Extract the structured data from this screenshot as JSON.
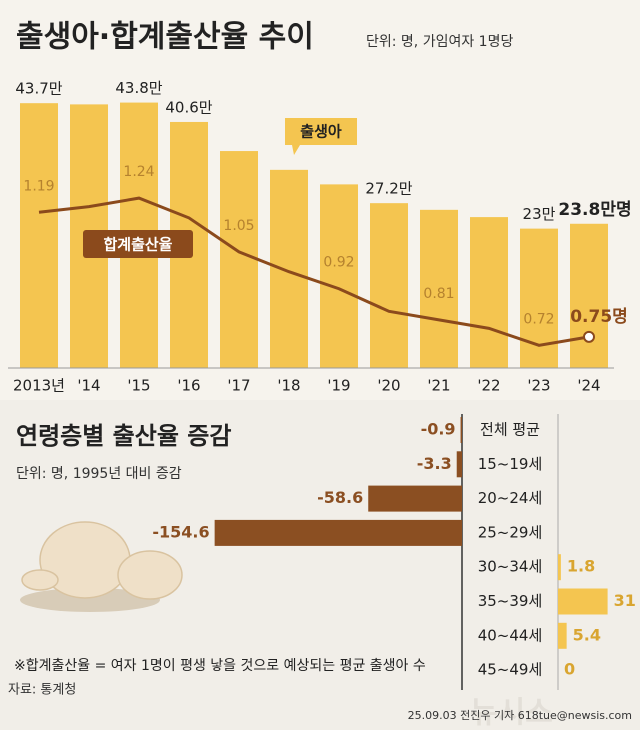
{
  "chart_data": [
    {
      "type": "bar",
      "title": "출생아·합계출산율 추이",
      "subtitle": "단위: 명, 가임여자 1명당",
      "categories": [
        "2013년",
        "'14",
        "'15",
        "'16",
        "'17",
        "'18",
        "'19",
        "'20",
        "'21",
        "'22",
        "'23",
        "'24"
      ],
      "series": [
        {
          "name": "출생아",
          "color": "#f4c550",
          "values": [
            43.7,
            43.5,
            43.8,
            40.6,
            35.8,
            32.7,
            30.3,
            27.2,
            26.1,
            24.9,
            23,
            23.8
          ],
          "value_labels": [
            "43.7만",
            null,
            "43.8만",
            "40.6만",
            null,
            null,
            null,
            "27.2만",
            null,
            null,
            "23만",
            "23.8만명"
          ]
        },
        {
          "name": "합계출산율",
          "type": "line",
          "axis": "y2",
          "color": "#8b4a1c",
          "values": [
            1.19,
            1.21,
            1.24,
            1.17,
            1.05,
            0.98,
            0.92,
            0.84,
            0.81,
            0.78,
            0.72,
            0.75
          ],
          "value_labels": [
            "1.19",
            null,
            "1.24",
            null,
            "1.05",
            null,
            "0.92",
            null,
            "0.81",
            null,
            "0.72",
            "0.75명"
          ]
        }
      ],
      "ylim": [
        0,
        50
      ],
      "y2lim": [
        0.64,
        1.71
      ]
    },
    {
      "type": "hbar",
      "title": "연령층별 출산율 증감",
      "subtitle": "단위: 명, 1995년 대비 증감",
      "categories": [
        "전체 평균",
        "15~19세",
        "20~24세",
        "25~29세",
        "30~34세",
        "35~39세",
        "40~44세",
        "45~49세"
      ],
      "values": [
        -0.9,
        -3.3,
        -58.6,
        -154.6,
        1.8,
        31,
        5.4,
        0
      ],
      "negative_color": "#8b4f22",
      "positive_color": "#f4c550",
      "xlim": [
        -160,
        35
      ]
    }
  ],
  "footnote": "※합계출산율 = 여자 1명이 평생 낳을 것으로 예상되는 평균 출생아 수",
  "source": "자료: 통계청",
  "credit": "25.09.03 전진우 기자 618tue@newsis.com",
  "watermark": "뉴시스"
}
